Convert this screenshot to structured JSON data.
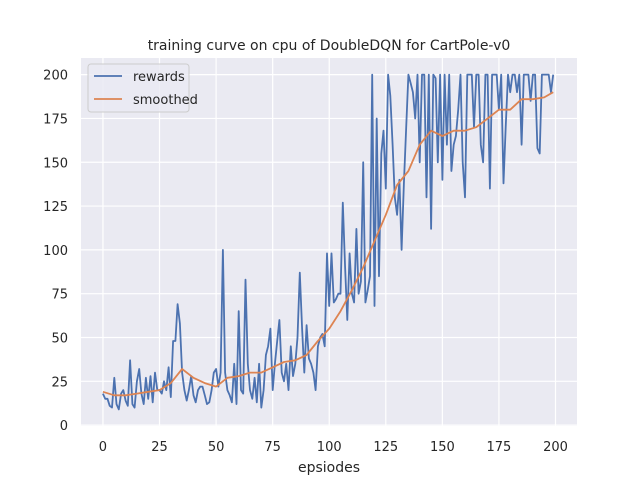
{
  "chart_data": {
    "type": "line",
    "title": "training curve on cpu of DoubleDQN for CartPole-v0",
    "xlabel": "epsiodes",
    "ylabel": "",
    "xlim": [
      -9.7,
      209.5
    ],
    "ylim": [
      -0.5,
      209.5
    ],
    "xticks": [
      0,
      25,
      50,
      75,
      100,
      125,
      150,
      175,
      200
    ],
    "yticks": [
      0,
      25,
      50,
      75,
      100,
      125,
      150,
      175,
      200
    ],
    "grid": true,
    "legend_position": "top-left",
    "background": "#eaeaf2",
    "series": [
      {
        "name": "rewards",
        "color": "#4c72b0",
        "x_start": 0,
        "values": [
          18,
          15,
          15,
          11,
          10,
          27,
          12,
          9,
          18,
          20,
          14,
          11,
          37,
          12,
          10,
          25,
          32,
          18,
          12,
          27,
          15,
          28,
          13,
          30,
          20,
          20,
          18,
          25,
          20,
          33,
          16,
          48,
          48,
          69,
          58,
          30,
          20,
          14,
          20,
          28,
          17,
          13,
          20,
          22,
          22,
          17,
          12,
          13,
          20,
          30,
          32,
          22,
          30,
          100,
          30,
          20,
          17,
          13,
          35,
          12,
          65,
          20,
          18,
          83,
          35,
          20,
          15,
          27,
          13,
          35,
          10,
          20,
          40,
          45,
          55,
          20,
          35,
          48,
          60,
          30,
          25,
          35,
          20,
          45,
          28,
          35,
          50,
          87,
          55,
          30,
          57,
          38,
          35,
          30,
          20,
          45,
          50,
          52,
          45,
          98,
          68,
          98,
          70,
          72,
          75,
          75,
          127,
          90,
          60,
          98,
          75,
          70,
          112,
          75,
          82,
          150,
          70,
          77,
          85,
          200,
          68,
          175,
          85,
          155,
          168,
          135,
          200,
          188,
          160,
          130,
          120,
          140,
          100,
          138,
          170,
          200,
          195,
          190,
          175,
          200,
          150,
          200,
          200,
          130,
          200,
          112,
          200,
          198,
          150,
          200,
          140,
          200,
          160,
          200,
          145,
          160,
          165,
          180,
          200,
          150,
          130,
          200,
          200,
          200,
          170,
          200,
          200,
          160,
          150,
          200,
          200,
          135,
          200,
          200,
          200,
          180,
          200,
          138,
          170,
          200,
          190,
          200,
          200,
          190,
          200,
          160,
          200,
          200,
          200,
          185,
          200,
          200,
          158,
          155,
          200,
          200,
          200,
          200,
          190,
          200
        ]
      },
      {
        "name": "smoothed",
        "color": "#dd8452",
        "x": [
          0,
          5,
          10,
          15,
          20,
          25,
          30,
          35,
          40,
          45,
          50,
          55,
          60,
          65,
          70,
          75,
          80,
          85,
          90,
          95,
          100,
          105,
          110,
          115,
          120,
          125,
          130,
          135,
          140,
          145,
          150,
          155,
          160,
          165,
          170,
          175,
          180,
          185,
          190,
          195,
          199
        ],
        "values": [
          19,
          17,
          17,
          18,
          19,
          20,
          24,
          32,
          27,
          24,
          22,
          27,
          28,
          30,
          30,
          33,
          36,
          37,
          40,
          48,
          55,
          65,
          77,
          90,
          105,
          120,
          137,
          145,
          160,
          168,
          165,
          168,
          168,
          170,
          175,
          180,
          180,
          186,
          186,
          187,
          190
        ]
      }
    ]
  }
}
